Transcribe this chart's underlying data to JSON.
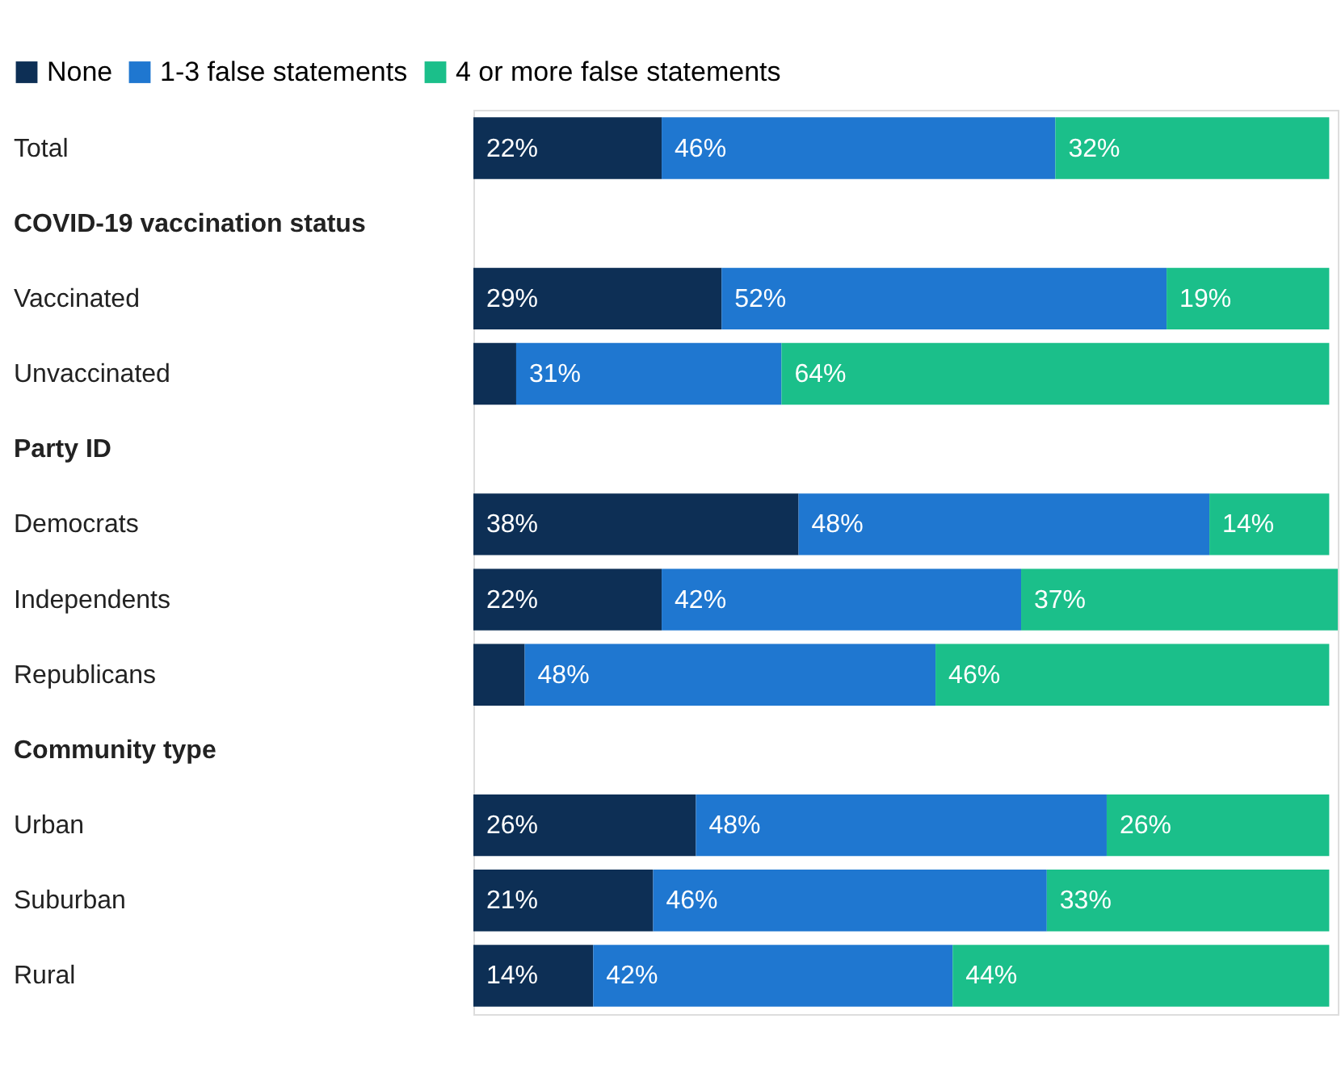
{
  "chart_data": {
    "type": "bar",
    "orientation": "horizontal",
    "stacked": true,
    "categories": [
      "Total",
      "COVID-19 vaccination status",
      "Vaccinated",
      "Unvaccinated",
      "Party ID",
      "Democrats",
      "Independents",
      "Republicans",
      "Community type",
      "Urban",
      "Suburban",
      "Rural"
    ],
    "series": [
      {
        "name": "None",
        "color": "#0d2f55",
        "values": [
          22,
          null,
          29,
          5,
          null,
          38,
          22,
          6,
          null,
          26,
          21,
          14
        ],
        "value_labels": [
          "22%",
          null,
          "29%",
          null,
          null,
          "38%",
          "22%",
          null,
          null,
          "26%",
          "21%",
          "14%"
        ]
      },
      {
        "name": "1-3 false statements",
        "color": "#1f77d0",
        "values": [
          46,
          null,
          52,
          31,
          null,
          48,
          42,
          48,
          null,
          48,
          46,
          42
        ],
        "value_labels": [
          "46%",
          null,
          "52%",
          "31%",
          null,
          "48%",
          "42%",
          "48%",
          null,
          "48%",
          "46%",
          "42%"
        ]
      },
      {
        "name": "4 or more false statements",
        "color": "#1bbf8a",
        "values": [
          32,
          null,
          19,
          64,
          null,
          14,
          37,
          46,
          null,
          26,
          33,
          44
        ],
        "value_labels": [
          "32%",
          null,
          "19%",
          "64%",
          null,
          "14%",
          "37%",
          "46%",
          null,
          "26%",
          "33%",
          "44%"
        ]
      }
    ],
    "xlim": [
      0,
      101
    ],
    "tick_labels": "y",
    "legend": "top left"
  }
}
